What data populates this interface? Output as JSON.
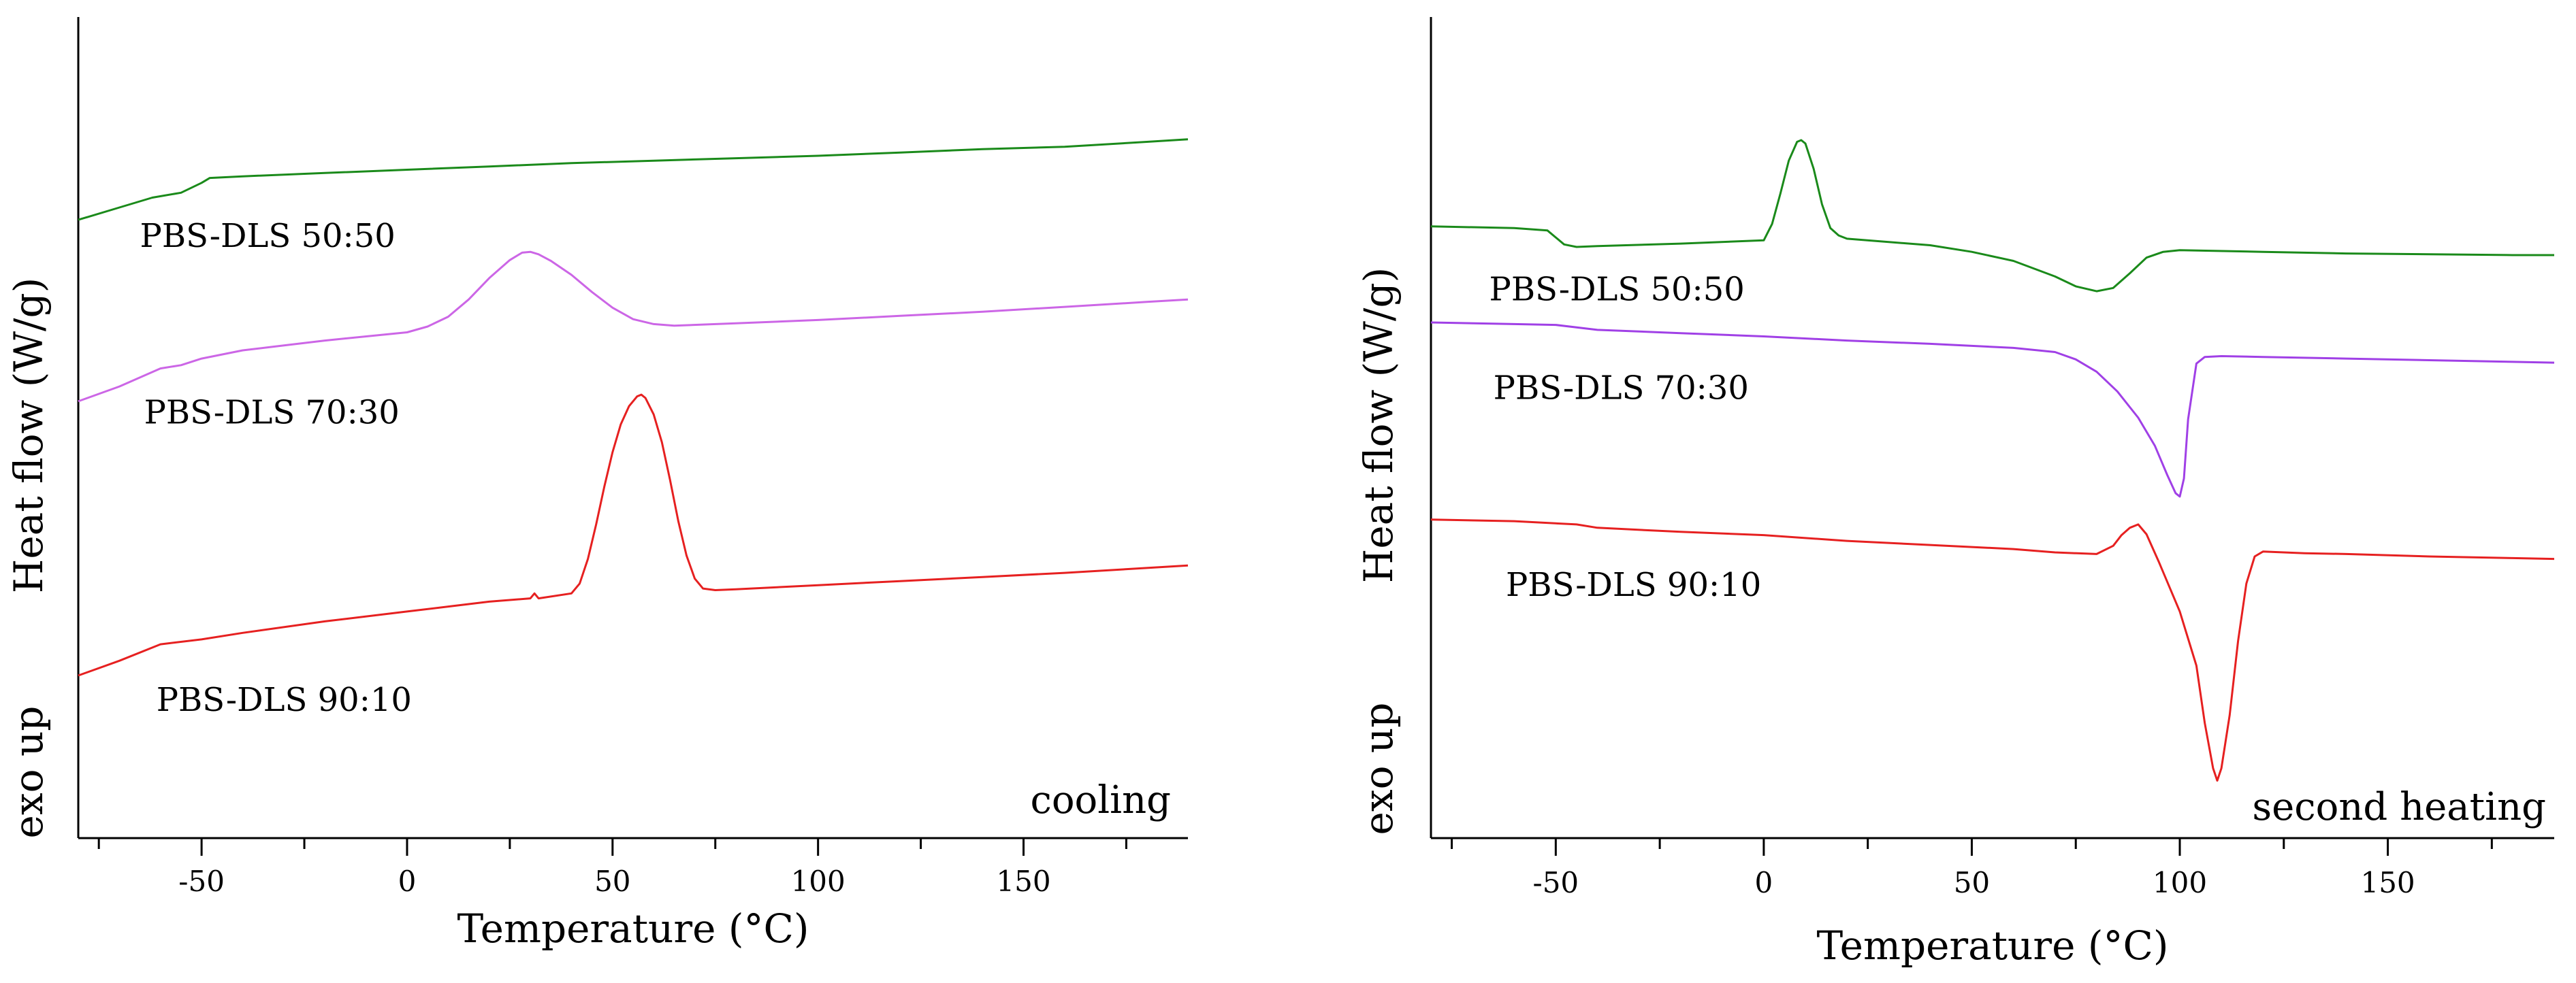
{
  "chart_data": [
    {
      "type": "line",
      "title": "",
      "annotation": "cooling",
      "xlabel": "Temperature (°C)",
      "ylabel": "Heat flow (W/g)",
      "ylabel2": "exo up",
      "xlim": [
        -80,
        190
      ],
      "ylim": [
        0,
        100
      ],
      "xticks": [
        -50,
        0,
        50,
        100,
        150
      ],
      "series": [
        {
          "name": "PBS-DLS 50:50",
          "color": "#1a8a1a",
          "x": [
            -80,
            -70,
            -62,
            -55,
            -50,
            -48,
            -40,
            -20,
            0,
            20,
            40,
            60,
            80,
            100,
            120,
            140,
            160,
            180,
            190
          ],
          "y": [
            75.3,
            76.8,
            78.0,
            78.6,
            79.8,
            80.4,
            80.6,
            81.0,
            81.4,
            81.8,
            82.2,
            82.5,
            82.8,
            83.1,
            83.5,
            83.9,
            84.2,
            84.8,
            85.1
          ]
        },
        {
          "name": "PBS-DLS 70:30",
          "color": "#cc66e6",
          "x": [
            -80,
            -70,
            -60,
            -55,
            -50,
            -40,
            -20,
            0,
            5,
            10,
            15,
            20,
            25,
            28,
            30,
            32,
            35,
            40,
            45,
            50,
            55,
            60,
            65,
            80,
            100,
            120,
            140,
            160,
            180,
            190
          ],
          "y": [
            53.2,
            55.0,
            57.2,
            57.6,
            58.4,
            59.4,
            60.6,
            61.6,
            62.3,
            63.5,
            65.6,
            68.2,
            70.4,
            71.3,
            71.4,
            71.1,
            70.3,
            68.6,
            66.5,
            64.6,
            63.2,
            62.6,
            62.4,
            62.7,
            63.1,
            63.6,
            64.1,
            64.7,
            65.3,
            65.6
          ]
        },
        {
          "name": "PBS-DLS 90:10",
          "color": "#e62020",
          "x": [
            -80,
            -70,
            -60,
            -50,
            -40,
            -20,
            0,
            20,
            30,
            31,
            32,
            40,
            42,
            44,
            46,
            48,
            50,
            52,
            54,
            56,
            57,
            58,
            60,
            62,
            64,
            66,
            68,
            70,
            72,
            75,
            80,
            100,
            120,
            140,
            160,
            180,
            190
          ],
          "y": [
            19.8,
            21.6,
            23.6,
            24.2,
            25.0,
            26.4,
            27.6,
            28.8,
            29.2,
            29.8,
            29.2,
            29.8,
            31.0,
            34.0,
            38.2,
            42.8,
            47.0,
            50.4,
            52.6,
            53.8,
            54.0,
            53.6,
            51.6,
            48.2,
            43.6,
            38.6,
            34.4,
            31.6,
            30.4,
            30.2,
            30.3,
            30.8,
            31.3,
            31.8,
            32.3,
            32.9,
            33.2
          ]
        }
      ],
      "labels": [
        {
          "text": "PBS-DLS 50:50",
          "x": -65,
          "y": 72
        },
        {
          "text": "PBS-DLS 70:30",
          "x": -64,
          "y": 50.5
        },
        {
          "text": "PBS-DLS 90:10",
          "x": -61,
          "y": 15.5
        }
      ]
    },
    {
      "type": "line",
      "title": "",
      "annotation": "second heating",
      "xlabel": "Temperature (°C)",
      "ylabel": "Heat flow (W/g)",
      "ylabel2": "exo up",
      "xlim": [
        -80,
        190
      ],
      "ylim": [
        0,
        100
      ],
      "xticks": [
        -50,
        0,
        50,
        100,
        150
      ],
      "series": [
        {
          "name": "PBS-DLS 50:50",
          "color": "#1a8a1a",
          "x": [
            -80,
            -60,
            -52,
            -48,
            -45,
            -40,
            -20,
            0,
            2,
            4,
            6,
            8,
            9,
            10,
            12,
            14,
            16,
            18,
            20,
            40,
            50,
            60,
            70,
            75,
            80,
            84,
            88,
            92,
            96,
            100,
            120,
            140,
            160,
            180,
            190
          ],
          "y": [
            74.5,
            74.3,
            74.0,
            72.3,
            72.0,
            72.1,
            72.4,
            72.8,
            74.8,
            78.5,
            82.5,
            84.8,
            85.0,
            84.6,
            81.5,
            77.2,
            74.3,
            73.4,
            73.0,
            72.2,
            71.4,
            70.3,
            68.4,
            67.2,
            66.6,
            67.0,
            68.8,
            70.7,
            71.4,
            71.6,
            71.4,
            71.2,
            71.1,
            71.0,
            71.0
          ]
        },
        {
          "name": "PBS-DLS 70:30",
          "color": "#a040e6",
          "x": [
            -80,
            -60,
            -50,
            -40,
            -20,
            0,
            20,
            40,
            60,
            70,
            75,
            80,
            85,
            90,
            94,
            97,
            99,
            100,
            101,
            102,
            104,
            106,
            110,
            120,
            140,
            160,
            180,
            190
          ],
          "y": [
            62.8,
            62.6,
            62.5,
            61.9,
            61.5,
            61.1,
            60.6,
            60.2,
            59.7,
            59.2,
            58.3,
            56.8,
            54.4,
            51.2,
            47.8,
            44.2,
            42.0,
            41.6,
            43.8,
            51.0,
            57.8,
            58.6,
            58.7,
            58.6,
            58.4,
            58.2,
            58.0,
            57.9
          ]
        },
        {
          "name": "PBS-DLS 90:10",
          "color": "#e62020",
          "x": [
            -80,
            -60,
            -45,
            -40,
            -20,
            0,
            20,
            40,
            60,
            70,
            80,
            84,
            86,
            88,
            90,
            92,
            95,
            100,
            104,
            106,
            108,
            109,
            110,
            112,
            114,
            116,
            118,
            120,
            130,
            140,
            160,
            180,
            190
          ],
          "y": [
            38.8,
            38.6,
            38.2,
            37.8,
            37.3,
            36.9,
            36.2,
            35.7,
            35.2,
            34.8,
            34.6,
            35.6,
            36.9,
            37.8,
            38.2,
            37.0,
            33.6,
            27.6,
            21.0,
            14.0,
            8.5,
            7.0,
            8.5,
            15.0,
            24.0,
            31.0,
            34.3,
            34.9,
            34.7,
            34.6,
            34.3,
            34.1,
            34.0
          ]
        }
      ],
      "labels": [
        {
          "text": "PBS-DLS 50:50",
          "x": -66,
          "y": 65.5
        },
        {
          "text": "PBS-DLS 70:30",
          "x": -65,
          "y": 53.5
        },
        {
          "text": "PBS-DLS 90:10",
          "x": -62,
          "y": 29.5
        }
      ]
    }
  ]
}
